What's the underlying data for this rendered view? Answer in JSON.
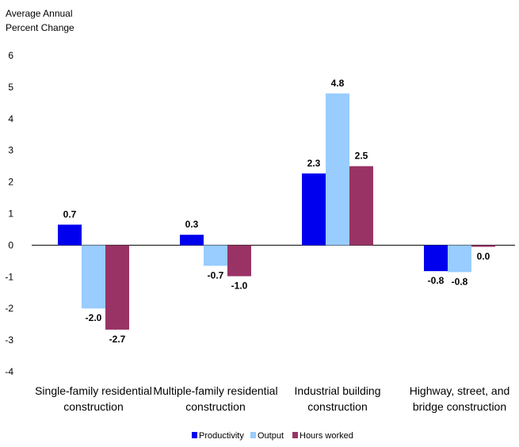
{
  "chart_data": {
    "type": "bar",
    "ylabel_lines": [
      "Average Annual",
      "Percent Change"
    ],
    "ylim": [
      -4,
      6
    ],
    "yticks": [
      "6",
      "5",
      "4",
      "3",
      "2",
      "1",
      "0",
      "-1",
      "-2",
      "-3",
      "-4"
    ],
    "grid": false,
    "legend_position": "bottom-center",
    "categories": [
      [
        "Single-family residential",
        "construction"
      ],
      [
        "Multiple-family residential",
        "construction"
      ],
      [
        "Industrial building",
        "construction"
      ],
      [
        "Highway, street, and",
        "bridge construction"
      ]
    ],
    "series": [
      {
        "name": "Productivity",
        "color": "#0000ee",
        "values": [
          0.65,
          0.33,
          2.27,
          -0.82
        ],
        "labels": [
          "0.7",
          "0.3",
          "2.3",
          "-0.8"
        ]
      },
      {
        "name": "Output",
        "color": "#99ccff",
        "values": [
          -2.0,
          -0.65,
          4.8,
          -0.85
        ],
        "labels": [
          "-2.0",
          "-0.7",
          "4.8",
          "-0.8"
        ]
      },
      {
        "name": "Hours worked",
        "color": "#993366",
        "values": [
          -2.67,
          -0.98,
          2.5,
          -0.04
        ],
        "labels": [
          "-2.7",
          "-1.0",
          "2.5",
          "0.0"
        ]
      }
    ]
  }
}
